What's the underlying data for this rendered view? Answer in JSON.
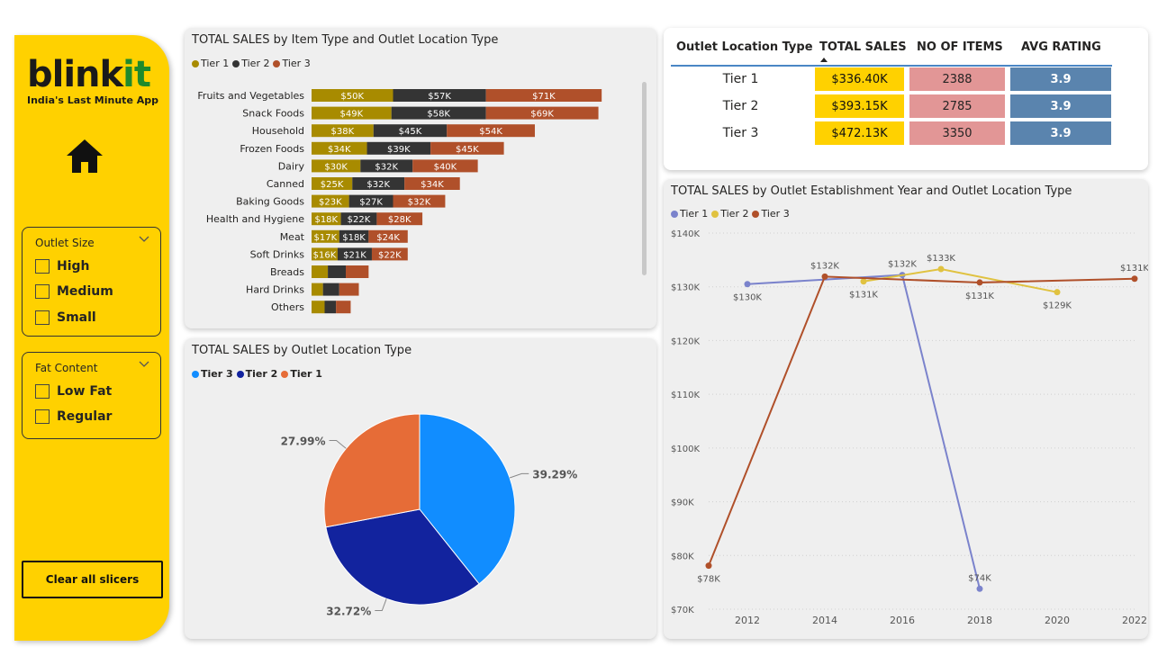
{
  "brand": {
    "name_main": "blink",
    "name_accent": "it",
    "tagline": "India's Last Minute App"
  },
  "nav": {
    "home_icon": "home-icon"
  },
  "slicers": {
    "outlet_size": {
      "title": "Outlet Size",
      "options": [
        "High",
        "Medium",
        "Small"
      ]
    },
    "fat_content": {
      "title": "Fat Content",
      "options": [
        "Low Fat",
        "Regular"
      ]
    },
    "clear_label": "Clear all slicers"
  },
  "colors": {
    "sidebar": "#FFD100",
    "tier1_bar": "#A88B00",
    "tier2_bar": "#343434",
    "tier3_bar": "#B0502A",
    "pie_tier3": "#118DFF",
    "pie_tier2": "#12239E",
    "pie_tier1": "#E66C37",
    "line_tier1": "#7B83CC",
    "line_tier2": "#E0C240",
    "line_tier3": "#B0502A",
    "table_sales": "#FFD100",
    "table_items": "#E29696",
    "table_rating": "#5A84AE"
  },
  "bar_chart": {
    "title": "TOTAL SALES by Item Type and Outlet Location Type",
    "legend": [
      "Tier 1",
      "Tier 2",
      "Tier 3"
    ]
  },
  "pie_chart": {
    "title": "TOTAL SALES by Outlet Location Type",
    "legend": [
      "Tier 3",
      "Tier 2",
      "Tier 1"
    ]
  },
  "line_chart": {
    "title": "TOTAL SALES by Outlet Establishment Year and Outlet Location Type",
    "legend": [
      "Tier 1",
      "Tier 2",
      "Tier 3"
    ]
  },
  "table": {
    "headers": [
      "Outlet Location Type",
      "TOTAL SALES",
      "NO OF ITEMS",
      "AVG RATING"
    ],
    "rows": [
      {
        "tier": "Tier 1",
        "sales": "$336.40K",
        "items": "2388",
        "rating": "3.9"
      },
      {
        "tier": "Tier 2",
        "sales": "$393.15K",
        "items": "2785",
        "rating": "3.9"
      },
      {
        "tier": "Tier 3",
        "sales": "$472.13K",
        "items": "3350",
        "rating": "3.9"
      }
    ]
  },
  "chart_data": [
    {
      "type": "bar",
      "stacked": true,
      "orientation": "horizontal",
      "categories": [
        "Fruits and Vegetables",
        "Snack Foods",
        "Household",
        "Frozen Foods",
        "Dairy",
        "Canned",
        "Baking Goods",
        "Health and Hygiene",
        "Meat",
        "Soft Drinks",
        "Breads",
        "Hard Drinks",
        "Others"
      ],
      "series": [
        {
          "name": "Tier 1",
          "values": [
            50,
            49,
            38,
            34,
            30,
            25,
            23,
            18,
            17,
            16,
            10,
            7,
            8
          ],
          "labels": [
            "$50K",
            "$49K",
            "$38K",
            "$34K",
            "$30K",
            "$25K",
            "$23K",
            "$18K",
            "$17K",
            "$16K",
            "",
            "",
            ""
          ]
        },
        {
          "name": "Tier 2",
          "values": [
            57,
            58,
            45,
            39,
            32,
            32,
            27,
            22,
            18,
            21,
            11,
            10,
            7
          ],
          "labels": [
            "$57K",
            "$58K",
            "$45K",
            "$39K",
            "$32K",
            "$32K",
            "$27K",
            "$22K",
            "$18K",
            "$21K",
            "",
            "",
            ""
          ]
        },
        {
          "name": "Tier 3",
          "values": [
            71,
            69,
            54,
            45,
            40,
            34,
            32,
            28,
            24,
            22,
            14,
            12,
            9
          ],
          "labels": [
            "$71K",
            "$69K",
            "$54K",
            "$45K",
            "$40K",
            "$34K",
            "$32K",
            "$28K",
            "$24K",
            "$22K",
            "",
            "",
            ""
          ]
        }
      ],
      "title": "TOTAL SALES by Item Type and Outlet Location Type",
      "legend_position": "top-left"
    },
    {
      "type": "pie",
      "donut": false,
      "slices": [
        {
          "name": "Tier 3",
          "value": 39.29,
          "label": "39.29%"
        },
        {
          "name": "Tier 2",
          "value": 32.72,
          "label": "32.72%"
        },
        {
          "name": "Tier 1",
          "value": 27.99,
          "label": "27.99%"
        }
      ],
      "title": "TOTAL SALES by Outlet Location Type",
      "legend_position": "top-left"
    },
    {
      "type": "line",
      "title": "TOTAL SALES by Outlet Establishment Year and Outlet Location Type",
      "x_ticks": [
        2012,
        2014,
        2016,
        2018,
        2020,
        2022
      ],
      "xlim": [
        2011,
        2022
      ],
      "ylim": [
        70,
        140
      ],
      "y_ticks": [
        "$70K",
        "$80K",
        "$90K",
        "$100K",
        "$110K",
        "$120K",
        "$130K",
        "$140K"
      ],
      "y_tick_values": [
        70,
        80,
        90,
        100,
        110,
        120,
        130,
        140
      ],
      "grid": true,
      "legend_position": "top-left",
      "series": [
        {
          "name": "Tier 1",
          "x": [
            2012,
            2016,
            2018
          ],
          "y": [
            130.5,
            132.2,
            73.8
          ],
          "labels": [
            "$130K",
            "$132K",
            "$74K"
          ]
        },
        {
          "name": "Tier 2",
          "x": [
            2015,
            2017,
            2020
          ],
          "y": [
            131.0,
            133.3,
            129.0
          ],
          "labels": [
            "$131K",
            "$133K",
            "$129K"
          ]
        },
        {
          "name": "Tier 3",
          "x": [
            2011,
            2014,
            2018,
            2022
          ],
          "y": [
            78.1,
            131.9,
            130.8,
            131.5
          ],
          "labels": [
            "$78K",
            "$132K",
            "$131K",
            "$131K"
          ]
        }
      ]
    }
  ]
}
